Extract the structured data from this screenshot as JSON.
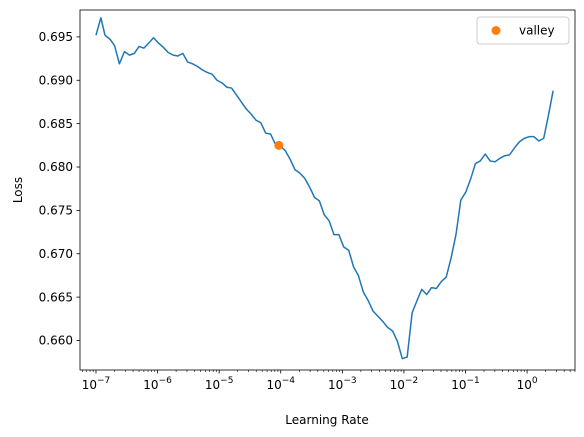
{
  "chart_data": {
    "type": "line",
    "xscale": "log",
    "xlabel": "Learning Rate",
    "ylabel": "Loss",
    "xlim": [
      5.5e-08,
      6.0
    ],
    "ylim": [
      0.6566,
      0.6981
    ],
    "grid": false,
    "legend_position": "top-right",
    "x_ticks": [
      {
        "value": 1e-07,
        "label": "10−7"
      },
      {
        "value": 1e-06,
        "label": "10−6"
      },
      {
        "value": 1e-05,
        "label": "10−5"
      },
      {
        "value": 0.0001,
        "label": "10−4"
      },
      {
        "value": 0.001,
        "label": "10−3"
      },
      {
        "value": 0.01,
        "label": "10−2"
      },
      {
        "value": 0.1,
        "label": "10−1"
      },
      {
        "value": 1,
        "label": "10⁰"
      }
    ],
    "y_ticks": [
      {
        "value": 0.66,
        "label": "0.660"
      },
      {
        "value": 0.665,
        "label": "0.665"
      },
      {
        "value": 0.67,
        "label": "0.670"
      },
      {
        "value": 0.675,
        "label": "0.675"
      },
      {
        "value": 0.68,
        "label": "0.680"
      },
      {
        "value": 0.685,
        "label": "0.685"
      },
      {
        "value": 0.69,
        "label": "0.690"
      },
      {
        "value": 0.695,
        "label": "0.695"
      }
    ],
    "series": [
      {
        "color": "#1f77b4",
        "style": "line",
        "points": [
          [
            1e-07,
            0.6952
          ],
          [
            1.2e-07,
            0.6972
          ],
          [
            1.4e-07,
            0.6952
          ],
          [
            1.7e-07,
            0.6947
          ],
          [
            2e-07,
            0.694
          ],
          [
            2.4e-07,
            0.6919
          ],
          [
            2.9e-07,
            0.6933
          ],
          [
            3.5e-07,
            0.6929
          ],
          [
            4.2e-07,
            0.6931
          ],
          [
            5e-07,
            0.6939
          ],
          [
            6e-07,
            0.6937
          ],
          [
            7.2e-07,
            0.6943
          ],
          [
            8.6e-07,
            0.6949
          ],
          [
            1.03e-06,
            0.6943
          ],
          [
            1.24e-06,
            0.6938
          ],
          [
            1.49e-06,
            0.6932
          ],
          [
            1.79e-06,
            0.6929
          ],
          [
            2.14e-06,
            0.6928
          ],
          [
            2.57e-06,
            0.6931
          ],
          [
            3.08e-06,
            0.6921
          ],
          [
            3.7e-06,
            0.6919
          ],
          [
            4.44e-06,
            0.6916
          ],
          [
            5.33e-06,
            0.6912
          ],
          [
            6.4e-06,
            0.6909
          ],
          [
            7.68e-06,
            0.6907
          ],
          [
            9.22e-06,
            0.69
          ],
          [
            1.11e-05,
            0.6897
          ],
          [
            1.33e-05,
            0.6892
          ],
          [
            1.59e-05,
            0.6891
          ],
          [
            1.91e-05,
            0.6883
          ],
          [
            2.29e-05,
            0.6875
          ],
          [
            2.75e-05,
            0.6867
          ],
          [
            3.3e-05,
            0.6861
          ],
          [
            3.96e-05,
            0.6854
          ],
          [
            4.75e-05,
            0.6851
          ],
          [
            5.7e-05,
            0.6839
          ],
          [
            6.84e-05,
            0.6838
          ],
          [
            8.21e-05,
            0.6826
          ],
          [
            9.85e-05,
            0.6824
          ],
          [
            0.000118,
            0.6819
          ],
          [
            0.000142,
            0.6809
          ],
          [
            0.00017,
            0.6797
          ],
          [
            0.000204,
            0.6793
          ],
          [
            0.000245,
            0.6787
          ],
          [
            0.000294,
            0.6777
          ],
          [
            0.000353,
            0.6765
          ],
          [
            0.000424,
            0.6761
          ],
          [
            0.000508,
            0.6745
          ],
          [
            0.00061,
            0.6738
          ],
          [
            0.000732,
            0.6722
          ],
          [
            0.000879,
            0.6722
          ],
          [
            0.00105,
            0.6708
          ],
          [
            0.00127,
            0.6704
          ],
          [
            0.00152,
            0.6685
          ],
          [
            0.00182,
            0.6675
          ],
          [
            0.00219,
            0.6656
          ],
          [
            0.00263,
            0.6646
          ],
          [
            0.00315,
            0.6634
          ],
          [
            0.00378,
            0.6628
          ],
          [
            0.00454,
            0.6622
          ],
          [
            0.00545,
            0.6615
          ],
          [
            0.00654,
            0.6611
          ],
          [
            0.00785,
            0.6599
          ],
          [
            0.00942,
            0.6579
          ],
          [
            0.0113,
            0.6581
          ],
          [
            0.0136,
            0.6632
          ],
          [
            0.0163,
            0.6646
          ],
          [
            0.0195,
            0.6659
          ],
          [
            0.0234,
            0.6653
          ],
          [
            0.0281,
            0.6661
          ],
          [
            0.0337,
            0.666
          ],
          [
            0.0405,
            0.6668
          ],
          [
            0.0486,
            0.6673
          ],
          [
            0.0583,
            0.6695
          ],
          [
            0.07,
            0.6722
          ],
          [
            0.084,
            0.6762
          ],
          [
            0.101,
            0.6771
          ],
          [
            0.121,
            0.6786
          ],
          [
            0.145,
            0.6804
          ],
          [
            0.174,
            0.6807
          ],
          [
            0.209,
            0.6815
          ],
          [
            0.251,
            0.6807
          ],
          [
            0.301,
            0.6806
          ],
          [
            0.361,
            0.681
          ],
          [
            0.433,
            0.6813
          ],
          [
            0.52,
            0.6814
          ],
          [
            0.624,
            0.6822
          ],
          [
            0.749,
            0.6829
          ],
          [
            0.899,
            0.6833
          ],
          [
            1.08,
            0.6835
          ],
          [
            1.29,
            0.6835
          ],
          [
            1.55,
            0.683
          ],
          [
            1.86,
            0.6833
          ],
          [
            2.23,
            0.686
          ],
          [
            2.65,
            0.6888
          ]
        ]
      },
      {
        "name": "valley",
        "color": "#ff7f0e",
        "style": "marker",
        "points": [
          [
            9.3e-05,
            0.6825
          ]
        ]
      }
    ]
  }
}
